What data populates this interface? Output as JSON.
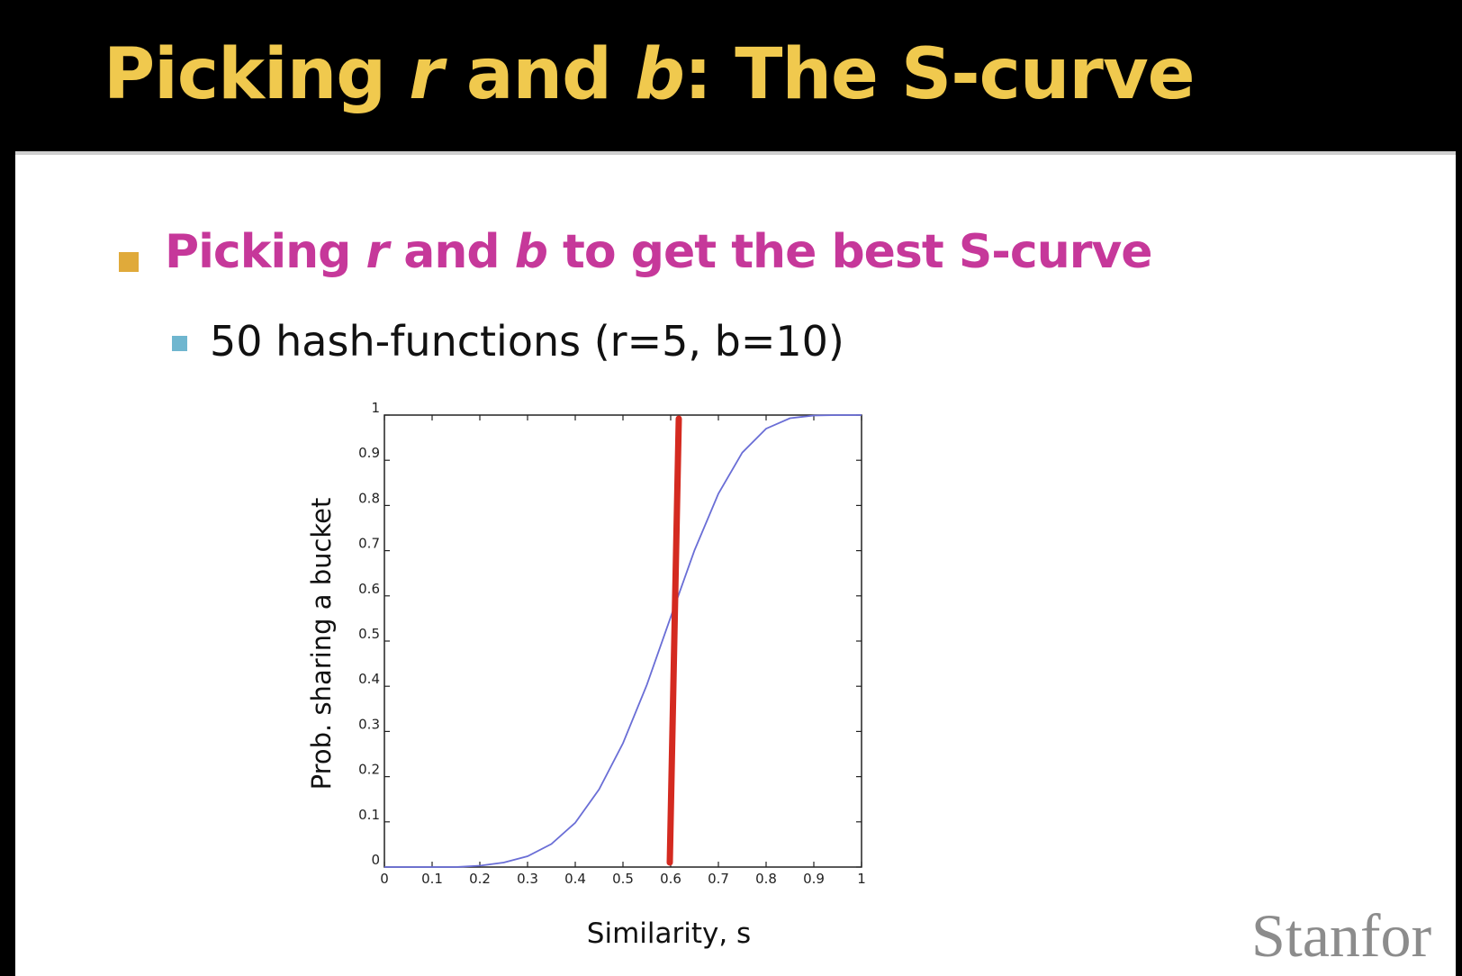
{
  "slide": {
    "title": {
      "part1": "Picking ",
      "r": "r",
      "part2": " and ",
      "b": "b",
      "part3": ": The S-curve"
    },
    "bullet1": {
      "part1": "Picking ",
      "r": "r",
      "part2": " and ",
      "b": "b",
      "part3": " to get the best S-curve"
    },
    "bullet2": "50 hash-functions (r=5, b=10)",
    "logo": "Stanfor",
    "colors": {
      "title": "#f0c94e",
      "bullet1_text": "#c6389a",
      "bullet1_marker": "#e0aa3a",
      "bullet2_marker": "#6fb6cf"
    }
  },
  "chart_data": {
    "type": "line",
    "xlabel": "Similarity, s",
    "ylabel": "Prob. sharing a bucket",
    "xlim": [
      0,
      1
    ],
    "ylim": [
      0,
      1
    ],
    "xticks": [
      "0",
      "0.1",
      "0.2",
      "0.3",
      "0.4",
      "0.5",
      "0.6",
      "0.7",
      "0.8",
      "0.9",
      "1"
    ],
    "yticks": [
      "0",
      "0.1",
      "0.2",
      "0.3",
      "0.4",
      "0.5",
      "0.6",
      "0.7",
      "0.8",
      "0.9",
      "1"
    ],
    "series": [
      {
        "color": "#6a6ed6",
        "x": [
          0,
          0.05,
          0.1,
          0.15,
          0.2,
          0.25,
          0.3,
          0.35,
          0.4,
          0.45,
          0.5,
          0.55,
          0.6,
          0.65,
          0.7,
          0.75,
          0.8,
          0.85,
          0.9,
          0.95,
          1
        ],
        "y": [
          0,
          0,
          0,
          0,
          0.003,
          0.01,
          0.024,
          0.051,
          0.098,
          0.172,
          0.274,
          0.403,
          0.553,
          0.701,
          0.826,
          0.917,
          0.97,
          0.993,
          0.999,
          1,
          1
        ]
      }
    ],
    "threshold": {
      "x": 0.6,
      "color": "#d42a20"
    }
  }
}
